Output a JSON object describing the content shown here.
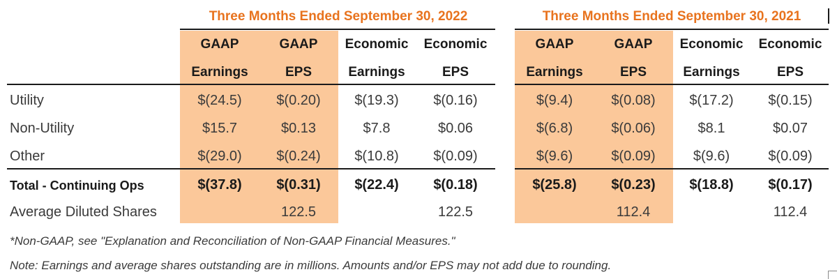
{
  "periods": [
    {
      "title": "Three Months Ended September 30, 2022"
    },
    {
      "title": "Three Months Ended September 30, 2021"
    }
  ],
  "column_headers": {
    "gaap": "GAAP",
    "economic": "Economic",
    "earnings": "Earnings",
    "eps": "EPS"
  },
  "rows": [
    {
      "label": "Utility",
      "values": [
        "$(24.5)",
        "$(0.20)",
        "$(19.3)",
        "$(0.16)",
        "$(9.4)",
        "$(0.08)",
        "$(17.2)",
        "$(0.15)"
      ]
    },
    {
      "label": "Non-Utility",
      "values": [
        "$15.7",
        "$0.13",
        "$7.8",
        "$0.06",
        "$(6.8)",
        "$(0.06)",
        "$8.1",
        "$0.07"
      ]
    },
    {
      "label": "Other",
      "values": [
        "$(29.0)",
        "$(0.24)",
        "$(10.8)",
        "$(0.09)",
        "$(9.6)",
        "$(0.09)",
        "$(9.6)",
        "$(0.09)"
      ]
    },
    {
      "label": "Total - Continuing Ops",
      "values": [
        "$(37.8)",
        "$(0.31)",
        "$(22.4)",
        "$(0.18)",
        "$(25.8)",
        "$(0.23)",
        "$(18.8)",
        "$(0.17)"
      ]
    },
    {
      "label": "Average Diluted Shares",
      "values": [
        "",
        "122.5",
        "",
        "122.5",
        "",
        "112.4",
        "",
        "112.4"
      ]
    }
  ],
  "footnotes": [
    "*Non-GAAP, see \"Explanation and Reconciliation of Non-GAAP Financial Measures.\"",
    "Note: Earnings and average shares outstanding are in millions. Amounts and/or EPS may not add due to rounding."
  ],
  "colors": {
    "highlight": "#fbc89a",
    "period_title": "#e8731e",
    "rule": "#1a1a1a"
  }
}
